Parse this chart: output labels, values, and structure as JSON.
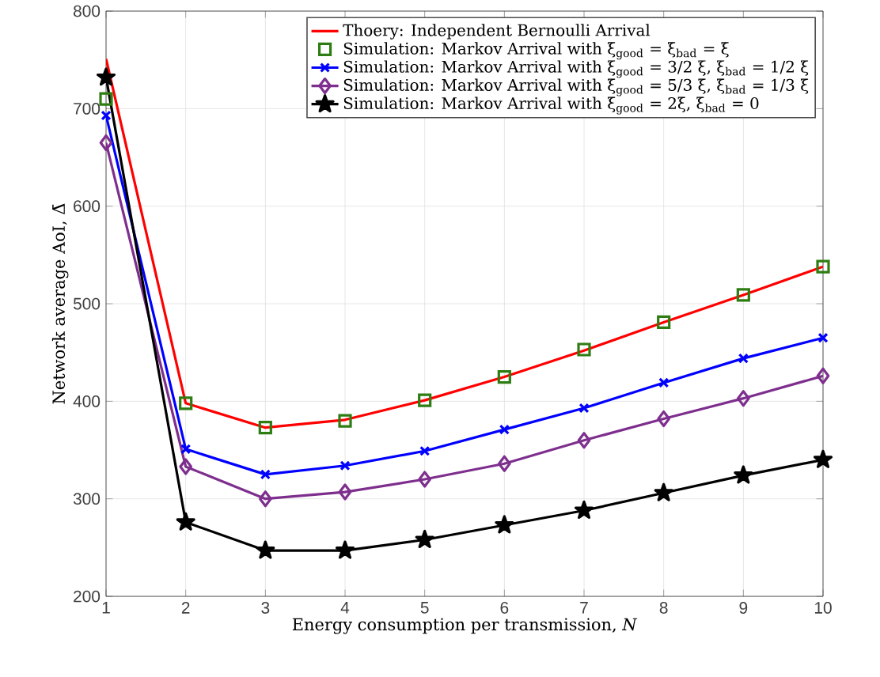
{
  "chart_data": {
    "type": "line",
    "xlabel": "Energy consumption per transmission, *N*",
    "ylabel": "Network average AoI, Δ̄",
    "x": [
      1,
      2,
      3,
      4,
      5,
      6,
      7,
      8,
      9,
      10
    ],
    "xlim": [
      1,
      10
    ],
    "ylim": [
      200,
      800
    ],
    "xticks": [
      1,
      2,
      3,
      4,
      5,
      6,
      7,
      8,
      9,
      10
    ],
    "yticks": [
      200,
      300,
      400,
      500,
      600,
      700,
      800
    ],
    "grid": true,
    "legend": "top right",
    "series": [
      {
        "name": "Thoery: Independent Bernoulli Arrival",
        "color": "#ff0000",
        "marker": "none",
        "values": [
          751,
          398,
          373,
          381,
          401,
          425,
          452,
          481,
          509,
          538
        ]
      },
      {
        "name": "Simulation: Markov Arrival with ξ$_{good}$ = ξ$_{bad}$ = ξ",
        "type": "scatter",
        "color": "#2e7d13",
        "marker": "square",
        "values": [
          710,
          398,
          373,
          380,
          401,
          425,
          453,
          481,
          509,
          538
        ]
      },
      {
        "name": "Simulation: Markov Arrival with ξ$_{good}$ = 3/2 ξ, ξ$_{bad}$ = 1/2 ξ",
        "color": "#0000ff",
        "marker": "cross",
        "values": [
          693,
          351,
          325,
          334,
          349,
          371,
          393,
          419,
          444,
          465
        ]
      },
      {
        "name": "Simulation: Markov Arrival with ξ$_{good}$ = 5/3 ξ, ξ$_{bad}$ = 1/3 ξ",
        "color": "#7e2f8e",
        "marker": "diamond",
        "values": [
          665,
          333,
          300,
          307,
          320,
          336,
          360,
          382,
          403,
          426
        ]
      },
      {
        "name": "Simulation: Markov Arrival with ξ$_{good}$ = 2ξ, ξ$_{bad}$ = 0",
        "color": "#000000",
        "marker": "star",
        "values": [
          732,
          276,
          247,
          247,
          258,
          273,
          288,
          306,
          324,
          340
        ]
      }
    ]
  }
}
